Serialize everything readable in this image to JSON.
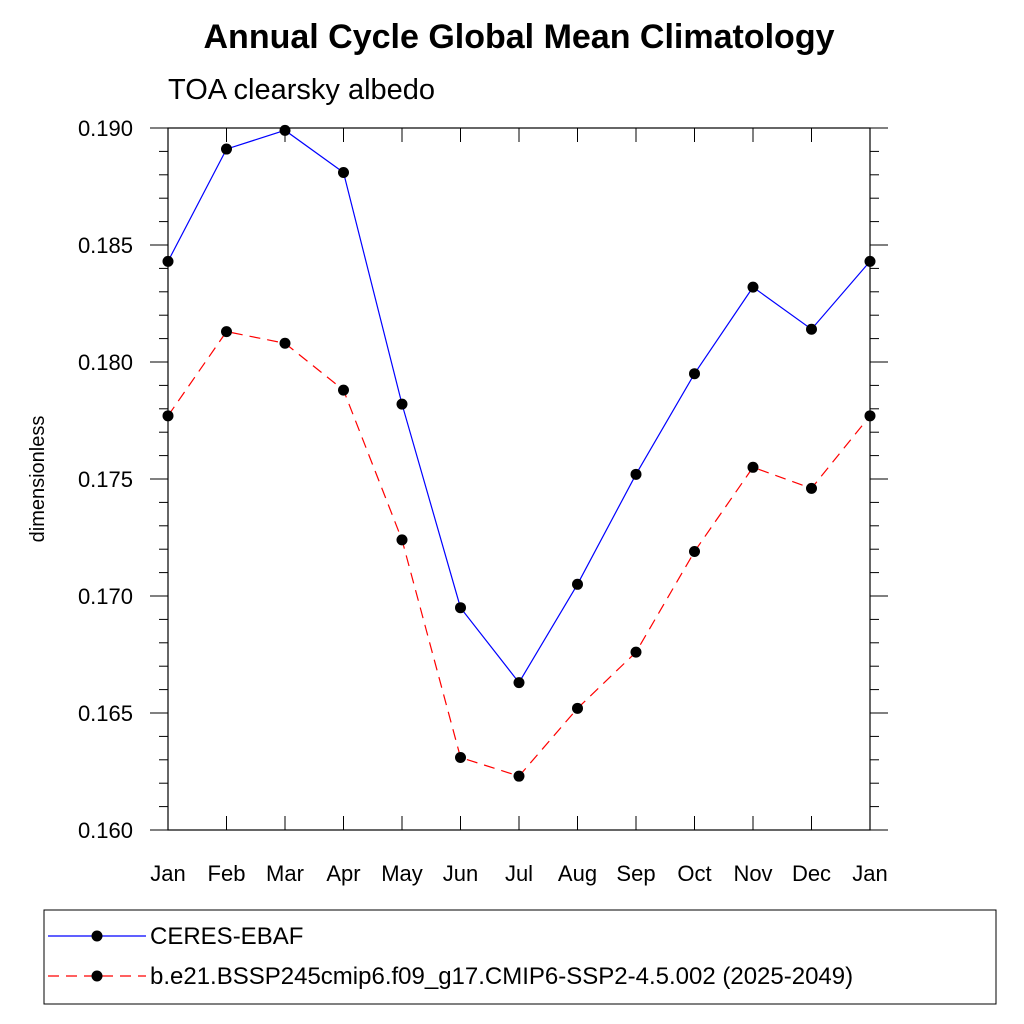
{
  "chart_data": {
    "type": "line",
    "title": "Annual Cycle Global Mean Climatology",
    "subtitle": "TOA clearsky albedo",
    "ylabel": "dimensionless",
    "xlabel": "",
    "categories": [
      "Jan",
      "Feb",
      "Mar",
      "Apr",
      "May",
      "Jun",
      "Jul",
      "Aug",
      "Sep",
      "Oct",
      "Nov",
      "Dec",
      "Jan"
    ],
    "ylim": [
      0.16,
      0.19
    ],
    "yticks": [
      "0.160",
      "0.165",
      "0.170",
      "0.175",
      "0.180",
      "0.185",
      "0.190"
    ],
    "legend_position": "bottom",
    "grid": false,
    "series": [
      {
        "name": "CERES-EBAF",
        "color": "#0000ff",
        "dash": "solid",
        "values": [
          0.1843,
          0.1891,
          0.1899,
          0.1881,
          0.1782,
          0.1695,
          0.1663,
          0.1705,
          0.1752,
          0.1795,
          0.1832,
          0.1814,
          0.1843
        ]
      },
      {
        "name": "b.e21.BSSP245cmip6.f09_g17.CMIP6-SSP2-4.5.002 (2025-2049)",
        "color": "#ff0000",
        "dash": "dashed",
        "values": [
          0.1777,
          0.1813,
          0.1808,
          0.1788,
          0.1724,
          0.1631,
          0.1623,
          0.1652,
          0.1676,
          0.1719,
          0.1755,
          0.1746,
          0.1777
        ]
      }
    ]
  }
}
